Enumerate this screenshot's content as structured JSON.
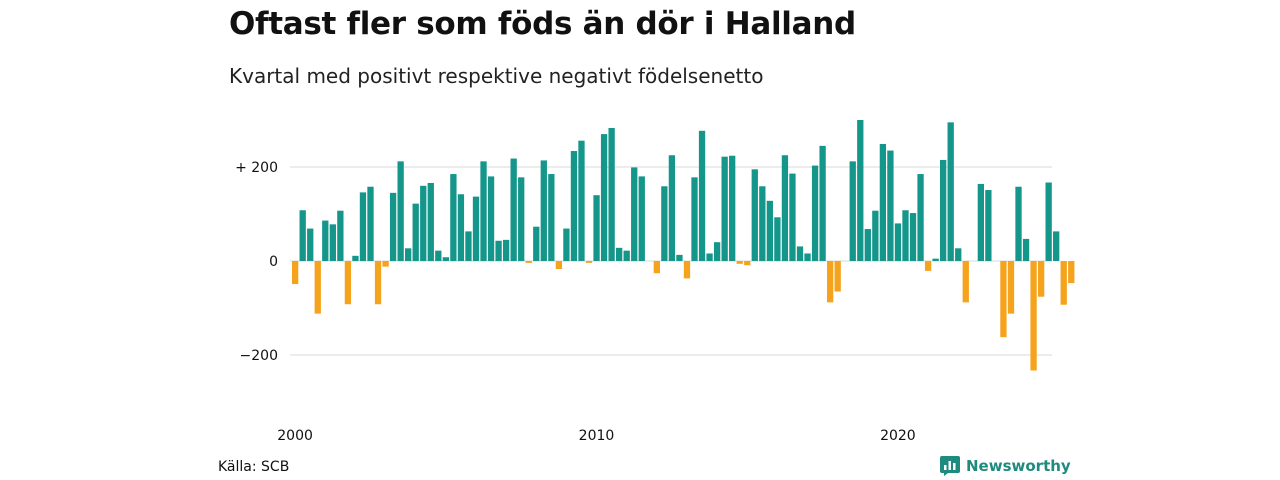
{
  "title": "Oftast fler som föds än dör i Halland",
  "subtitle": "Kvartal med positivt respektive negativt födelsenetto",
  "source": "Källa: SCB",
  "brand": "Newsworthy",
  "colors": {
    "positive": "#14968a",
    "negative": "#f5a21c",
    "grid": "#d9d9d9",
    "brand": "#1f8a7e"
  },
  "chart_data": {
    "type": "bar",
    "title": "Oftast fler som föds än dör i Halland",
    "subtitle": "Kvartal med positivt respektive negativt födelsenetto",
    "xlabel": "",
    "ylabel": "",
    "ylim": [
      -300,
      300
    ],
    "yticks": [
      {
        "value": 200,
        "label": "+ 200"
      },
      {
        "value": 0,
        "label": "0"
      },
      {
        "value": -200,
        "label": "−200"
      }
    ],
    "xticks": [
      {
        "year": 2000,
        "label": "2000"
      },
      {
        "year": 2010,
        "label": "2010"
      },
      {
        "year": 2020,
        "label": "2020"
      }
    ],
    "grid": true,
    "start": "2000 Q1",
    "series": [
      {
        "values": [
          -49,
          108,
          69,
          -112,
          86,
          78,
          107,
          -92,
          11,
          146,
          158,
          -92,
          -12,
          145,
          212,
          27,
          122,
          160,
          166,
          22,
          8,
          185,
          142,
          63,
          137,
          212,
          180,
          43,
          45,
          218,
          178,
          -4,
          73,
          214,
          185,
          -17,
          69,
          234,
          256,
          -4,
          140,
          270,
          283,
          28,
          22,
          199,
          180,
          0,
          -26,
          159,
          225,
          13,
          -37,
          178,
          277,
          16,
          40,
          222,
          224,
          -6,
          -9,
          195,
          159,
          128,
          93,
          225,
          186,
          31,
          16,
          203,
          245,
          -88,
          -65,
          0,
          212,
          300,
          68,
          107,
          249,
          235,
          80,
          108,
          102,
          185,
          -21,
          5,
          215,
          295,
          27,
          -88,
          0,
          164,
          151,
          0,
          -162,
          -112,
          158,
          47,
          -233,
          -76,
          167,
          63,
          -93,
          -47
        ]
      }
    ]
  }
}
